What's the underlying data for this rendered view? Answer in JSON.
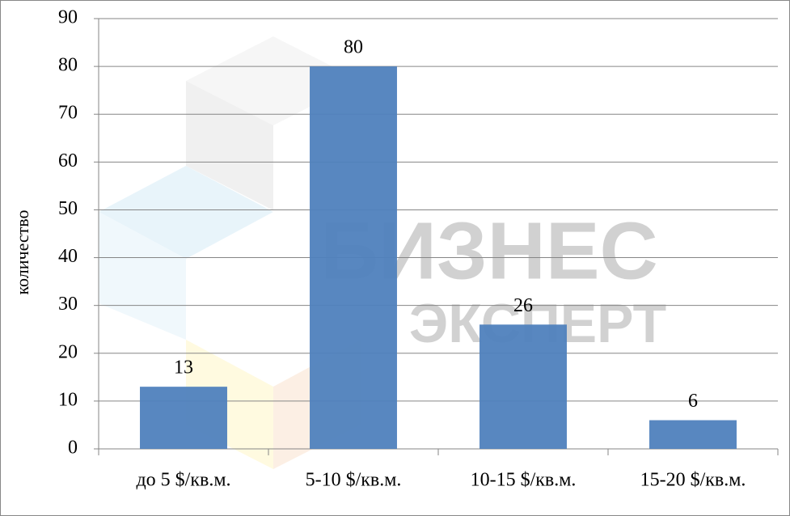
{
  "chart_data": {
    "type": "bar",
    "y_label": "количество",
    "categories": [
      "до 5 $/кв.м.",
      "5-10 $/кв.м.",
      "10-15 $/кв.м.",
      "15-20 $/кв.м."
    ],
    "values": [
      13,
      80,
      26,
      6
    ],
    "color": "#4f81bd",
    "ylim": [
      0,
      90
    ],
    "yticks": [
      0,
      10,
      20,
      30,
      40,
      50,
      60,
      70,
      80,
      90
    ],
    "grid": true,
    "watermark": [
      "БИЗНЕС",
      "ЭКСПЕРТ"
    ]
  }
}
